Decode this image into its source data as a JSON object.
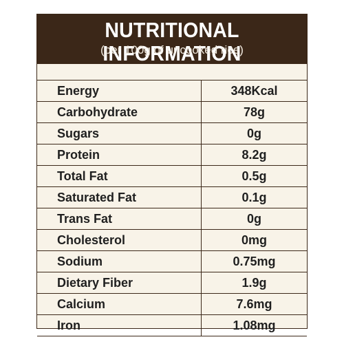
{
  "panel": {
    "title": "NUTRITIONAL INFORMATION",
    "subtitle": "(per 100g of uncooked rice)",
    "colors": {
      "header_bg": "#3b2718",
      "panel_bg": "#f8f3e8",
      "border": "#3b2718",
      "text": "#1f1f1f"
    }
  },
  "rows": [
    {
      "name": "Energy",
      "value": "348Kcal"
    },
    {
      "name": "Carbohydrate",
      "value": "78g"
    },
    {
      "name": "Sugars",
      "value": "0g"
    },
    {
      "name": "Protein",
      "value": "8.2g"
    },
    {
      "name": "Total Fat",
      "value": "0.5g"
    },
    {
      "name": "Saturated Fat",
      "value": "0.1g"
    },
    {
      "name": "Trans Fat",
      "value": "0g"
    },
    {
      "name": "Cholesterol",
      "value": "0mg"
    },
    {
      "name": "Sodium",
      "value": "0.75mg"
    },
    {
      "name": "Dietary Fiber",
      "value": "1.9g"
    },
    {
      "name": "Calcium",
      "value": "7.6mg"
    },
    {
      "name": "Iron",
      "value": "1.08mg"
    }
  ]
}
